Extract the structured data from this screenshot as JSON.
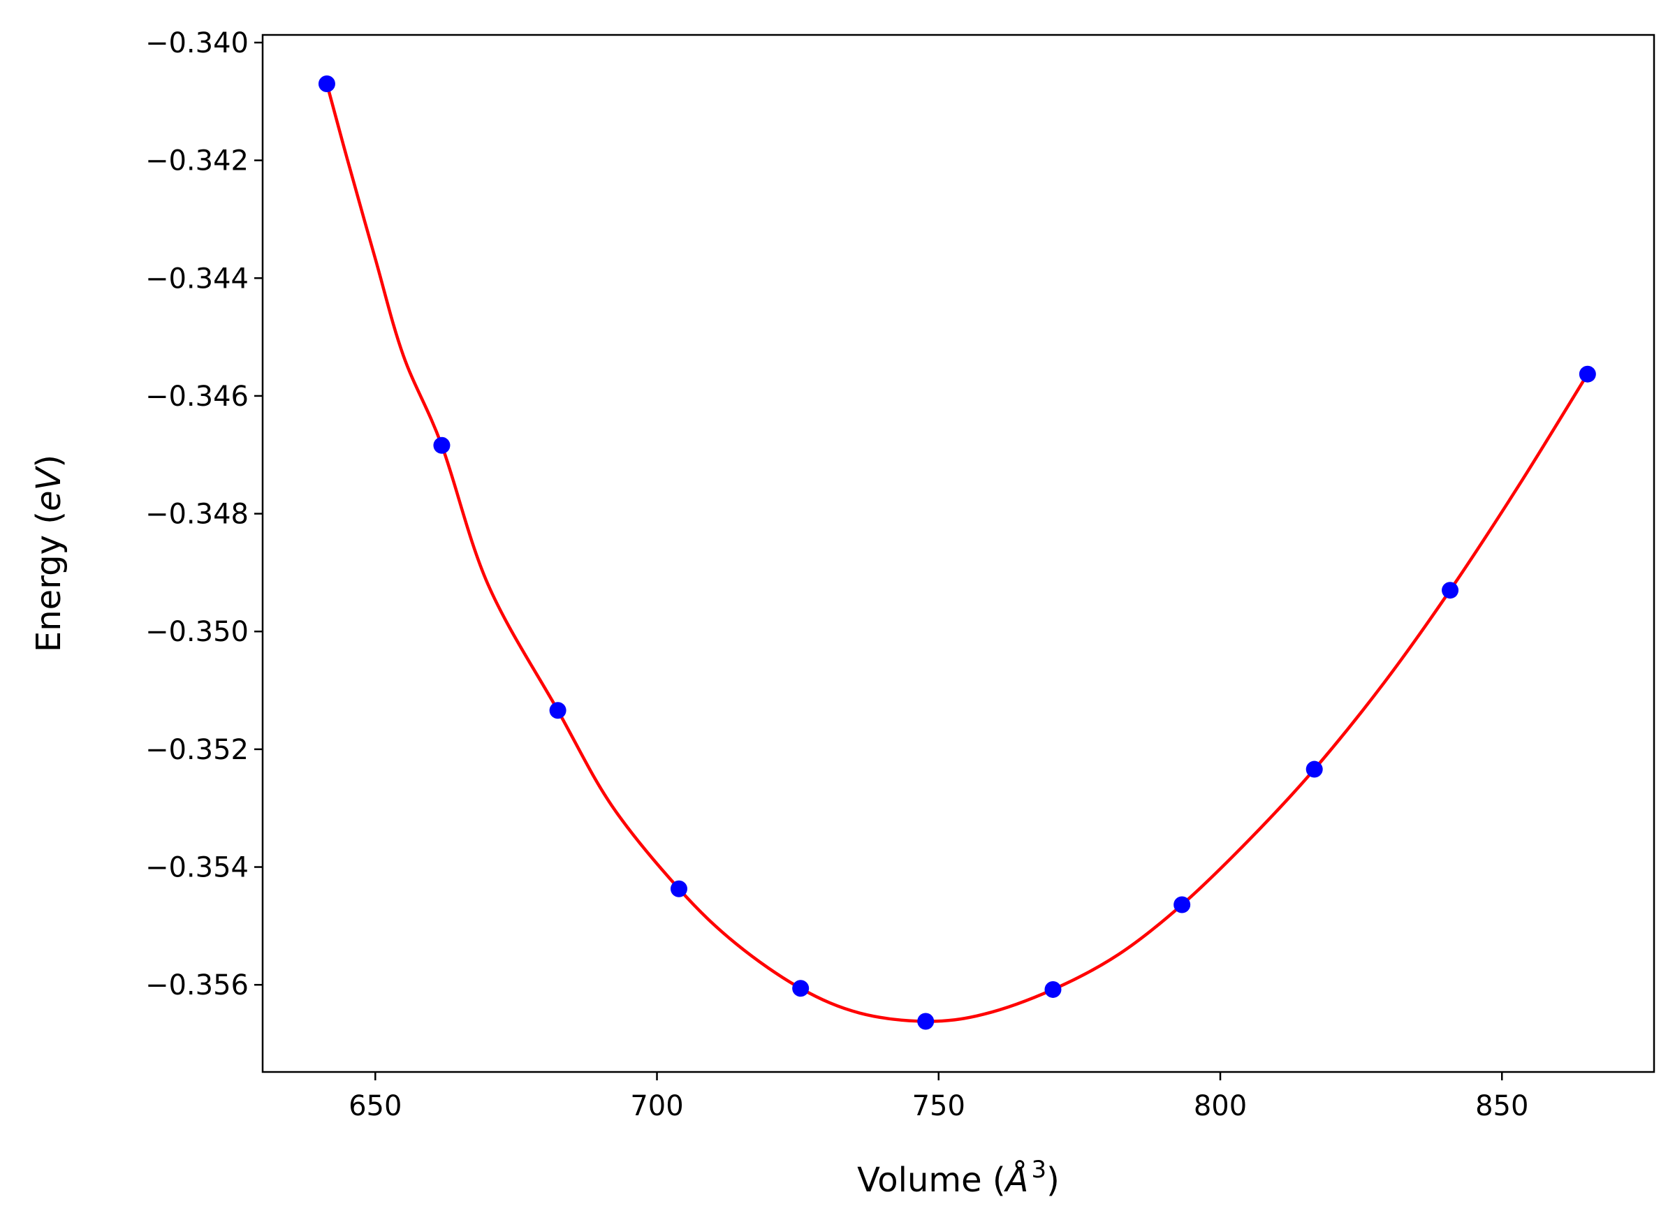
{
  "chart_data": {
    "type": "scatter",
    "title": "",
    "xlabel": {
      "prefix": "Volume (",
      "unit": "Å",
      "power": "3",
      "suffix": ")"
    },
    "ylabel": {
      "prefix": "Energy (",
      "unit": "eV",
      "suffix": ")"
    },
    "xlim": [
      630,
      877
    ],
    "ylim": [
      -0.35748,
      -0.33987
    ],
    "x_ticks": [
      650,
      700,
      750,
      800,
      850
    ],
    "x_tick_labels": [
      "650",
      "700",
      "750",
      "800",
      "850"
    ],
    "y_ticks": [
      -0.34,
      -0.342,
      -0.344,
      -0.346,
      -0.348,
      -0.35,
      -0.352,
      -0.354,
      -0.356
    ],
    "y_tick_labels": [
      "−0.340",
      "−0.342",
      "−0.344",
      "−0.346",
      "−0.348",
      "−0.350",
      "−0.352",
      "−0.354",
      "−0.356"
    ],
    "grid": false,
    "series": [
      {
        "kind": "points",
        "color": "#0000ff",
        "x": [
          641.4,
          661.8,
          682.4,
          703.9,
          725.5,
          747.7,
          770.3,
          793.2,
          816.7,
          840.8,
          865.2
        ],
        "y": [
          -0.3407,
          -0.34684,
          -0.35134,
          -0.35437,
          -0.35606,
          -0.35662,
          -0.35608,
          -0.35464,
          -0.35234,
          -0.3493,
          -0.34563
        ]
      },
      {
        "kind": "fit_line",
        "color": "#ff0000",
        "x": [
          641.4,
          645,
          650,
          655,
          661.8,
          670,
          682.4,
          692,
          703.9,
          714,
          725.5,
          736,
          747.7,
          758,
          770.3,
          782,
          793.2,
          805,
          816.7,
          829,
          840.8,
          853,
          865.2
        ],
        "y": [
          -0.3407,
          -0.34197,
          -0.34367,
          -0.34532,
          -0.34684,
          -0.3492,
          -0.35134,
          -0.35296,
          -0.35437,
          -0.3553,
          -0.35606,
          -0.35648,
          -0.35662,
          -0.3565,
          -0.35608,
          -0.35548,
          -0.35464,
          -0.35355,
          -0.35234,
          -0.35088,
          -0.3493,
          -0.34752,
          -0.34563
        ]
      }
    ]
  }
}
